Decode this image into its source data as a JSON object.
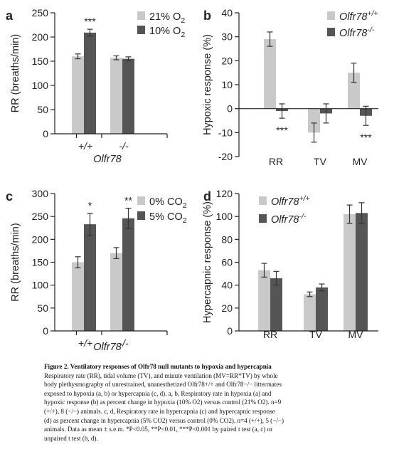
{
  "colors": {
    "light": "#c9c9c9",
    "dark": "#555555",
    "axis": "#222222"
  },
  "chart_data": [
    {
      "panel": "a",
      "type": "bar",
      "ylabel": "RR (breaths/min)",
      "ylim": [
        0,
        250
      ],
      "yticks": [
        "0",
        "50",
        "100",
        "150",
        "200",
        "250"
      ],
      "categories": [
        "+/+",
        "-/-"
      ],
      "xlabel": "Olfr78",
      "legend_position": "top-right",
      "series": [
        {
          "name": "21% O",
          "name_sub": "2",
          "color": "light",
          "values": [
            160,
            157
          ],
          "err": [
            5,
            4
          ]
        },
        {
          "name": "10% O",
          "name_sub": "2",
          "color": "dark",
          "values": [
            209,
            155
          ],
          "err": [
            7,
            4
          ]
        }
      ],
      "annotations": [
        {
          "category": 0,
          "text": "***"
        }
      ]
    },
    {
      "panel": "b",
      "type": "bar",
      "ylabel": "Hypoxic response (%)",
      "ylim": [
        -20,
        40
      ],
      "yticks": [
        "-20",
        "-10",
        "0",
        "10",
        "20",
        "30",
        "40"
      ],
      "categories": [
        "RR",
        "TV",
        "MV"
      ],
      "legend_position": "top-right",
      "series": [
        {
          "name": "Olfr78",
          "name_sup": "+/+",
          "color": "light",
          "values": [
            29,
            -10,
            15
          ],
          "err": [
            3,
            4,
            4
          ]
        },
        {
          "name": "Olfr78",
          "name_sup": "-/-",
          "color": "dark",
          "values": [
            -1,
            -2,
            -3
          ],
          "err": [
            3,
            4,
            4
          ]
        }
      ],
      "annotations": [
        {
          "category": 0,
          "text": "***"
        },
        {
          "category": 2,
          "text": "***"
        }
      ]
    },
    {
      "panel": "c",
      "type": "bar",
      "ylabel": "RR (breaths/min)",
      "ylim": [
        0,
        300
      ],
      "yticks": [
        "0",
        "50",
        "100",
        "150",
        "200",
        "250",
        "300"
      ],
      "categories": [
        "+/+",
        "-/-"
      ],
      "xlabel": "Olfr78",
      "legend_position": "top-right",
      "series": [
        {
          "name": "0% CO",
          "name_sub": "2",
          "color": "light",
          "values": [
            150,
            170
          ],
          "err": [
            12,
            12
          ]
        },
        {
          "name": "5% CO",
          "name_sub": "2",
          "color": "dark",
          "values": [
            233,
            246
          ],
          "err": [
            24,
            22
          ]
        }
      ],
      "annotations": [
        {
          "category": 0,
          "text": "*"
        },
        {
          "category": 1,
          "text": "**"
        }
      ]
    },
    {
      "panel": "d",
      "type": "bar",
      "ylabel": "Hypercapnic response (%)",
      "ylim": [
        0,
        120
      ],
      "yticks": [
        "0",
        "20",
        "40",
        "60",
        "80",
        "100",
        "120"
      ],
      "categories": [
        "RR",
        "TV",
        "MV"
      ],
      "legend_position": "top-left",
      "series": [
        {
          "name": "Olfr78",
          "name_sup": "+/+",
          "color": "light",
          "values": [
            53,
            32,
            102
          ],
          "err": [
            6,
            2,
            8
          ]
        },
        {
          "name": "Olfr78",
          "name_sup": "-/-",
          "color": "dark",
          "values": [
            46,
            38,
            103
          ],
          "err": [
            6,
            3,
            9
          ]
        }
      ],
      "annotations": []
    }
  ],
  "caption": {
    "title": "Figure 2. Ventilatory responses of Olfr78 null mutants to hypoxia and hypercapnia",
    "lines": [
      "Respiratory rate (RR), tidal volume (TV), and minute ventilation (MV=RR*TV) by whole",
      "body plethysmography of unrestrained, unanesthetized Olfr78+/+ and Olfr78−/− littermates",
      "exposed to hypoxia (a, b) or hypercapnia (c, d). a, b, Respiratory rate in hypoxia (a) and",
      "hypoxic response (b) as percent change in hypoxia (10% O2) versus control (21% O2). n=9",
      "(+/+), 8 (−/−) animals. c, d, Respiratory rate in hypercapnia (c) and hypercapnic response",
      "(d) as percent change in hypercapnia (5% CO2) versus control (0% CO2). n=4 (+/+), 5 (−/−)",
      "animals. Data as mean ± s.e.m. *P<0.05, **P<0.01, ***P<0.001 by paired t test (a, c) or",
      "unpaired t test (b, d)."
    ]
  }
}
